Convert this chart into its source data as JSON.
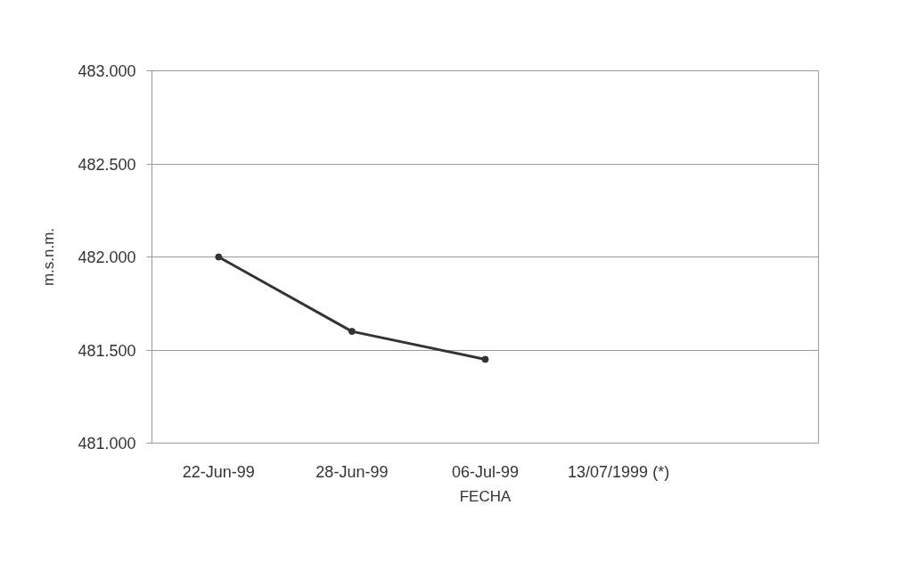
{
  "chart_data": {
    "type": "line",
    "xlabel": "FECHA",
    "ylabel": "m.s.n.m.",
    "categories": [
      "22-Jun-99",
      "28-Jun-99",
      "06-Jul-99",
      "13/07/1999 (*)",
      null
    ],
    "series": [
      {
        "color": "#333333",
        "values": [
          482.0,
          481.6,
          481.45,
          null,
          null
        ]
      }
    ],
    "ylim": [
      481,
      483
    ],
    "yticks": [
      {
        "value": 481,
        "label": "481.000"
      },
      {
        "value": 481.5,
        "label": "481.500"
      },
      {
        "value": 482,
        "label": "482.000"
      },
      {
        "value": 482.5,
        "label": "482.500"
      },
      {
        "value": 483,
        "label": "483.000"
      }
    ],
    "grid": "y",
    "marker": "circle",
    "line_style": "solid"
  }
}
